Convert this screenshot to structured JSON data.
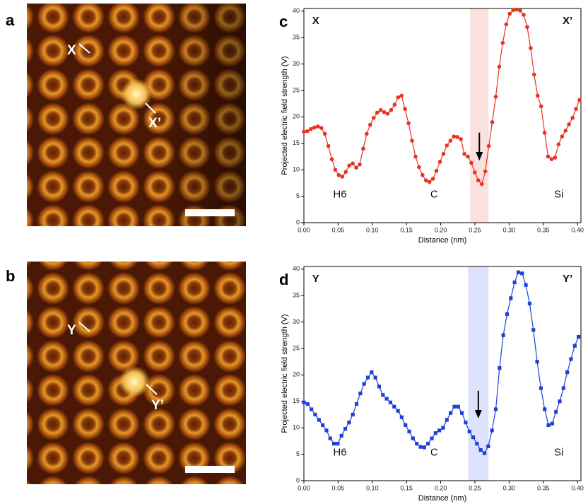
{
  "images": [
    {
      "label": "a",
      "annotations": [
        "X",
        "X’"
      ]
    },
    {
      "label": "b",
      "annotations": [
        "Y",
        "Y’"
      ]
    }
  ],
  "chart_data": [
    {
      "type": "line",
      "label": "c",
      "xlabel": "Distance (nm)",
      "ylabel": "Projected electric field strength (V)",
      "annotations": [
        "X",
        "X’",
        "H6",
        "C",
        "Si"
      ],
      "highlight": {
        "x": [
          0.243,
          0.27
        ],
        "color": "#fbe1dd"
      },
      "xlim": [
        0,
        0.405
      ],
      "ylim": [
        0,
        40.5
      ],
      "xticks": [
        {
          "value": 0,
          "label": "0.00"
        },
        {
          "value": 0.05,
          "label": "0.05"
        },
        {
          "value": 0.1,
          "label": "0.10"
        },
        {
          "value": 0.15,
          "label": "0.15"
        },
        {
          "value": 0.2,
          "label": "0.20"
        },
        {
          "value": 0.25,
          "label": "0.25"
        },
        {
          "value": 0.3,
          "label": "0.30"
        },
        {
          "value": 0.35,
          "label": "0.35"
        },
        {
          "value": 0.4,
          "label": "0.40"
        }
      ],
      "yticks": [
        0,
        5,
        10,
        15,
        20,
        25,
        30,
        35,
        40
      ],
      "x": [
        0,
        0.0051,
        0.0102,
        0.0153,
        0.0204,
        0.0255,
        0.0306,
        0.0357,
        0.0408,
        0.0459,
        0.051,
        0.0561,
        0.0612,
        0.0663,
        0.0714,
        0.0765,
        0.0816,
        0.0867,
        0.0918,
        0.0969,
        0.102,
        0.1071,
        0.1122,
        0.1173,
        0.1224,
        0.1275,
        0.1326,
        0.1377,
        0.1428,
        0.1479,
        0.153,
        0.1581,
        0.1632,
        0.1683,
        0.1734,
        0.1785,
        0.1836,
        0.1887,
        0.1938,
        0.1989,
        0.204,
        0.2091,
        0.2142,
        0.2193,
        0.2244,
        0.2295,
        0.2346,
        0.2397,
        0.2448,
        0.2499,
        0.255,
        0.2601,
        0.2652,
        0.2703,
        0.2754,
        0.2805,
        0.2856,
        0.2907,
        0.2958,
        0.3009,
        0.306,
        0.3111,
        0.3162,
        0.3213,
        0.3264,
        0.3315,
        0.3366,
        0.3417,
        0.3468,
        0.3519,
        0.357,
        0.3621,
        0.3672,
        0.3723,
        0.3774,
        0.3825,
        0.3876,
        0.3927,
        0.3978,
        0.4029
      ],
      "series": [
        {
          "color": "#e8321e",
          "marker": "circle",
          "values": [
            17.2,
            17.3,
            17.7,
            18.0,
            18.2,
            17.9,
            16.8,
            14.5,
            12.0,
            10.0,
            9.0,
            8.7,
            9.6,
            10.8,
            11.2,
            10.4,
            11.0,
            14.0,
            16.8,
            18.5,
            19.8,
            20.8,
            21.3,
            20.9,
            20.6,
            21.3,
            22.3,
            23.7,
            24.0,
            21.5,
            18.8,
            15.5,
            12.5,
            10.5,
            9.0,
            8.0,
            7.7,
            8.3,
            9.8,
            11.5,
            13.0,
            14.6,
            15.5,
            16.3,
            16.2,
            15.8,
            13.0,
            12.5,
            11.3,
            9.5,
            8.0,
            7.3,
            9.7,
            14.5,
            19.0,
            23.8,
            29.5,
            34.0,
            37.5,
            39.5,
            40.2,
            40.3,
            40.1,
            39.3,
            37.0,
            33.0,
            28.0,
            24.0,
            22.0,
            17.0,
            12.5,
            12.0,
            12.3,
            14.8,
            16.3,
            17.4,
            18.6,
            19.8,
            21.5,
            23.2
          ]
        }
      ]
    },
    {
      "type": "line",
      "label": "d",
      "xlabel": "Distance (nm)",
      "ylabel": "Projected electric field strength (V)",
      "annotations": [
        "Y",
        "Y’",
        "H6",
        "C",
        "Si"
      ],
      "highlight": {
        "x": [
          0.24,
          0.27
        ],
        "color": "#dde3fb"
      },
      "xlim": [
        0,
        0.405
      ],
      "ylim": [
        0,
        40.5
      ],
      "xticks": [
        {
          "value": 0,
          "label": "0.00"
        },
        {
          "value": 0.05,
          "label": "0.05"
        },
        {
          "value": 0.1,
          "label": "0.10"
        },
        {
          "value": 0.15,
          "label": "0.15"
        },
        {
          "value": 0.2,
          "label": "0.20"
        },
        {
          "value": 0.25,
          "label": "0.25"
        },
        {
          "value": 0.3,
          "label": "0.30"
        },
        {
          "value": 0.35,
          "label": "0.35"
        },
        {
          "value": 0.4,
          "label": "0.40"
        }
      ],
      "yticks": [
        0,
        5,
        10,
        15,
        20,
        25,
        30,
        35,
        40
      ],
      "x": [
        0,
        0.0055,
        0.011,
        0.0165,
        0.022,
        0.0275,
        0.033,
        0.0385,
        0.044,
        0.0495,
        0.055,
        0.0605,
        0.066,
        0.0715,
        0.077,
        0.0825,
        0.088,
        0.0935,
        0.099,
        0.1045,
        0.11,
        0.1155,
        0.121,
        0.1265,
        0.132,
        0.1375,
        0.143,
        0.1485,
        0.154,
        0.1595,
        0.165,
        0.1705,
        0.176,
        0.1815,
        0.187,
        0.1925,
        0.198,
        0.2035,
        0.209,
        0.2145,
        0.22,
        0.2255,
        0.231,
        0.2365,
        0.242,
        0.2475,
        0.253,
        0.2585,
        0.264,
        0.2695,
        0.275,
        0.2805,
        0.286,
        0.2915,
        0.297,
        0.3025,
        0.308,
        0.3135,
        0.319,
        0.3245,
        0.33,
        0.3355,
        0.341,
        0.3465,
        0.352,
        0.3575,
        0.363,
        0.3685,
        0.374,
        0.3795,
        0.385,
        0.3905,
        0.396,
        0.4015
      ],
      "series": [
        {
          "color": "#1f3fdb",
          "marker": "square",
          "values": [
            14.8,
            14.5,
            13.5,
            12.5,
            11.5,
            10.5,
            9.5,
            8.0,
            7.0,
            7.0,
            8.5,
            9.8,
            11.0,
            12.5,
            14.5,
            16.5,
            18.3,
            19.5,
            20.5,
            19.5,
            17.8,
            16.2,
            15.5,
            14.8,
            14.0,
            13.2,
            12.0,
            10.5,
            9.3,
            8.0,
            7.0,
            6.4,
            6.3,
            7.0,
            8.0,
            9.0,
            9.5,
            10.0,
            11.5,
            12.8,
            14.0,
            14.0,
            12.8,
            11.0,
            9.3,
            8.2,
            7.0,
            5.8,
            5.2,
            6.5,
            9.5,
            13.5,
            21.3,
            27.5,
            31.5,
            34.5,
            37.5,
            39.4,
            39.2,
            37.0,
            33.5,
            28.5,
            22.5,
            17.5,
            13.5,
            10.5,
            10.8,
            13.0,
            15.0,
            17.5,
            20.5,
            23.0,
            25.5,
            27.2
          ]
        }
      ]
    }
  ]
}
